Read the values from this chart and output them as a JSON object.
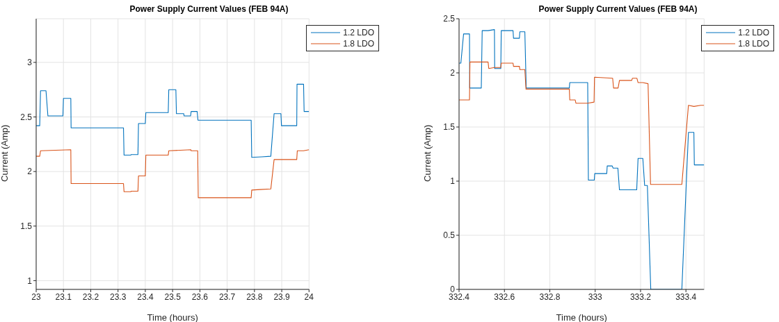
{
  "chart_data": [
    {
      "type": "line",
      "title": "Power Supply Current Values (FEB 94A)",
      "xlabel": "Time (hours)",
      "ylabel": "Current (Amp)",
      "xlim": [
        23,
        24
      ],
      "xticks": [
        23,
        23.1,
        23.2,
        23.3,
        23.4,
        23.5,
        23.6,
        23.7,
        23.8,
        23.9,
        24
      ],
      "ylim": [
        0.92,
        3.4
      ],
      "yticks": [
        1,
        1.5,
        2,
        2.5,
        3
      ],
      "grid": true,
      "legend": "top right",
      "series": [
        {
          "name": "1.2 LDO",
          "color": "#0072bd",
          "x": [
            23,
            23.013,
            23.016,
            23.036,
            23.043,
            23.098,
            23.1,
            23.127,
            23.128,
            23.32,
            23.322,
            23.347,
            23.348,
            23.373,
            23.375,
            23.4,
            23.402,
            23.484,
            23.486,
            23.512,
            23.514,
            23.541,
            23.542,
            23.566,
            23.568,
            23.59,
            23.593,
            23.788,
            23.79,
            23.827,
            23.86,
            23.872,
            23.897,
            23.899,
            23.955,
            23.956,
            23.98,
            23.982,
            24
          ],
          "values": [
            2.42,
            2.42,
            2.74,
            2.74,
            2.51,
            2.51,
            2.67,
            2.67,
            2.4,
            2.4,
            2.15,
            2.15,
            2.155,
            2.155,
            2.44,
            2.44,
            2.54,
            2.54,
            2.75,
            2.75,
            2.53,
            2.53,
            2.51,
            2.51,
            2.55,
            2.55,
            2.47,
            2.47,
            2.13,
            2.135,
            2.14,
            2.53,
            2.53,
            2.42,
            2.42,
            2.8,
            2.8,
            2.55,
            2.55
          ]
        },
        {
          "name": "1.8 LDO",
          "color": "#d95319",
          "x": [
            23,
            23.013,
            23.016,
            23.127,
            23.128,
            23.32,
            23.322,
            23.347,
            23.348,
            23.373,
            23.375,
            23.4,
            23.402,
            23.484,
            23.486,
            23.567,
            23.568,
            23.592,
            23.594,
            23.788,
            23.79,
            23.82,
            23.86,
            23.872,
            23.955,
            23.957,
            23.98,
            24
          ],
          "values": [
            2.14,
            2.14,
            2.19,
            2.2,
            1.89,
            1.89,
            1.815,
            1.815,
            1.82,
            1.82,
            1.96,
            1.96,
            2.15,
            2.15,
            2.19,
            2.2,
            2.19,
            2.19,
            1.76,
            1.76,
            1.83,
            1.835,
            1.84,
            2.11,
            2.11,
            2.19,
            2.19,
            2.2
          ]
        }
      ]
    },
    {
      "type": "line",
      "title": "Power Supply Current Values (FEB 94A)",
      "xlabel": "Time (hours)",
      "ylabel": "Current (Amp)",
      "xlim": [
        332.4,
        333.48
      ],
      "xticks": [
        332.4,
        332.6,
        332.8,
        333,
        333.2,
        333.4
      ],
      "ylim": [
        0,
        2.5
      ],
      "yticks": [
        0,
        0.5,
        1,
        1.5,
        2,
        2.5
      ],
      "grid": true,
      "legend": "top right",
      "series": [
        {
          "name": "1.2 LDO",
          "color": "#0072bd",
          "x": [
            332.4,
            332.408,
            332.42,
            332.446,
            332.447,
            332.498,
            332.502,
            332.528,
            332.556,
            332.557,
            332.584,
            332.586,
            332.638,
            332.64,
            332.666,
            332.668,
            332.69,
            332.696,
            332.886,
            332.888,
            332.967,
            332.97,
            332.996,
            332.998,
            333.051,
            333.053,
            333.075,
            333.079,
            333.1,
            333.107,
            333.183,
            333.189,
            333.21,
            333.218,
            333.23,
            333.245,
            333.382,
            333.411,
            333.435,
            333.437,
            333.48
          ],
          "values": [
            2.09,
            2.09,
            2.36,
            2.36,
            1.86,
            1.86,
            2.39,
            2.39,
            2.4,
            2.04,
            2.04,
            2.39,
            2.39,
            2.32,
            2.32,
            2.38,
            2.38,
            1.86,
            1.86,
            1.91,
            1.91,
            1.01,
            1.01,
            1.07,
            1.07,
            1.14,
            1.14,
            1.12,
            1.12,
            0.92,
            0.92,
            1.21,
            1.21,
            0.96,
            0.96,
            0,
            0,
            1.45,
            1.45,
            1.15,
            1.15
          ]
        },
        {
          "name": "1.8 LDO",
          "color": "#d95319",
          "x": [
            332.4,
            332.446,
            332.448,
            332.528,
            332.531,
            332.556,
            332.584,
            332.586,
            332.638,
            332.64,
            332.666,
            332.668,
            332.69,
            332.695,
            332.886,
            332.888,
            332.912,
            332.915,
            332.967,
            332.995,
            332.997,
            333.077,
            333.081,
            333.101,
            333.107,
            333.161,
            333.164,
            333.184,
            333.189,
            333.21,
            333.233,
            333.244,
            333.382,
            333.411,
            333.435,
            333.465,
            333.48
          ],
          "values": [
            1.75,
            1.75,
            2.1,
            2.1,
            2.04,
            2.05,
            2.05,
            2.09,
            2.09,
            2.06,
            2.06,
            2.03,
            2.03,
            1.85,
            1.85,
            1.75,
            1.75,
            1.72,
            1.72,
            1.73,
            1.96,
            1.95,
            1.86,
            1.86,
            1.93,
            1.93,
            1.95,
            1.95,
            1.91,
            1.91,
            1.9,
            0.97,
            0.97,
            1.7,
            1.69,
            1.7,
            1.7
          ]
        }
      ]
    }
  ]
}
